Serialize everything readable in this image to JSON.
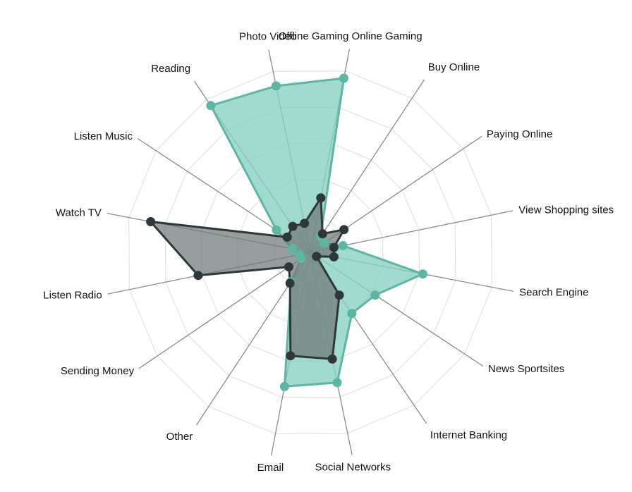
{
  "chart_data": {
    "type": "radar",
    "title": "",
    "grid": true,
    "ring_count": 5,
    "range": [
      0,
      1
    ],
    "categories": [
      "Offline Gaming Online Gaming",
      "Buy Online",
      "Paying Online",
      "View Shopping sites",
      "Search Engine",
      "News Sportsites",
      "Internet Banking",
      "Social Networks",
      "Email",
      "Other",
      "Sending Money",
      "Listen Radio",
      "Watch TV",
      "Listen Music",
      "Reading",
      "Photo Video"
    ],
    "series": [
      {
        "color": "#5bb6a4",
        "fill": "#86cfc1",
        "values": [
          0.96,
          0.1,
          0.09,
          0.18,
          0.62,
          0.42,
          0.4,
          0.72,
          0.74,
          0.19,
          0.06,
          0.06,
          0.1,
          0.22,
          0.96,
          0.92
        ]
      },
      {
        "color": "#2f3838",
        "fill": "#6f7878",
        "values": [
          0.3,
          0.12,
          0.22,
          0.13,
          0.13,
          0.04,
          0.28,
          0.59,
          0.57,
          0.2,
          0.14,
          0.62,
          0.88,
          0.15,
          0.17,
          0.16
        ]
      }
    ]
  }
}
